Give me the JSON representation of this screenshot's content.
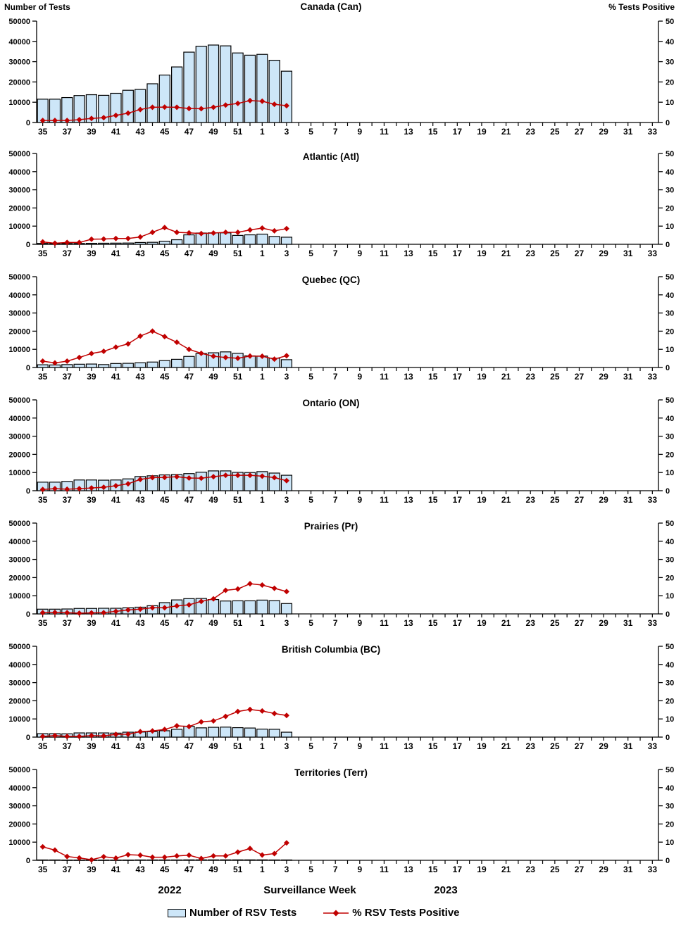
{
  "header": {
    "left_axis_label": "Number of Tests",
    "right_axis_label": "% Tests Positive"
  },
  "footer": {
    "year_left": "2022",
    "axis_title": "Surveillance Week",
    "year_right": "2023"
  },
  "legend": {
    "bar_label": "Number of RSV Tests",
    "line_label": "% RSV Tests Positive"
  },
  "colors": {
    "bar_fill": "#CDE6F8",
    "bar_stroke": "#000000",
    "line": "#C00000",
    "axis": "#000000"
  },
  "chart_data": {
    "type": "bar+line multi-panel",
    "x_axis_note": "Surveillance weeks 35-52 of 2022 followed by weeks 1-33 of 2023; bars and % positive line plotted through week 3 of 2023",
    "x_weeks": [
      35,
      36,
      37,
      38,
      39,
      40,
      41,
      42,
      43,
      44,
      45,
      46,
      47,
      48,
      49,
      50,
      51,
      52,
      1,
      2,
      3,
      4,
      5,
      6,
      7,
      8,
      9,
      10,
      11,
      12,
      13,
      14,
      15,
      16,
      17,
      18,
      19,
      20,
      21,
      22,
      23,
      24,
      25,
      26,
      27,
      28,
      29,
      30,
      31,
      32,
      33
    ],
    "x_labeled_weeks": [
      35,
      37,
      39,
      41,
      43,
      45,
      47,
      49,
      51,
      1,
      3,
      5,
      7,
      9,
      11,
      13,
      15,
      17,
      19,
      21,
      23,
      25,
      27,
      29,
      31,
      33
    ],
    "ylim_left": [
      0,
      50000
    ],
    "ylim_right": [
      0,
      50
    ],
    "y_left_ticks": [
      0,
      10000,
      20000,
      30000,
      40000,
      50000
    ],
    "y_right_ticks": [
      0,
      10,
      20,
      30,
      40,
      50
    ],
    "series_names": [
      "Number of RSV Tests",
      "% RSV Tests Positive"
    ],
    "panels": [
      {
        "title": "Canada (Can)",
        "tests": [
          11500,
          11500,
          12300,
          13300,
          13700,
          13400,
          14400,
          15900,
          16300,
          19100,
          23400,
          27400,
          34700,
          37600,
          38200,
          37800,
          34300,
          33200,
          33600,
          30700,
          25300
        ],
        "pct_positive": [
          1.0,
          1.0,
          1.0,
          1.4,
          2.0,
          2.4,
          3.5,
          4.6,
          6.4,
          7.5,
          7.6,
          7.5,
          6.9,
          6.8,
          7.5,
          8.6,
          9.4,
          10.8,
          10.5,
          9.0,
          8.3
        ]
      },
      {
        "title": "Atlantic (Atl)",
        "tests": [
          500,
          450,
          450,
          450,
          550,
          600,
          650,
          700,
          1000,
          1100,
          1700,
          2500,
          5200,
          6200,
          6300,
          6300,
          4900,
          5200,
          5600,
          4300,
          3900
        ],
        "pct_positive": [
          1.3,
          0.6,
          1.0,
          1.0,
          2.8,
          2.9,
          3.2,
          3.2,
          4.0,
          6.6,
          9.2,
          6.6,
          6.3,
          5.9,
          6.2,
          6.6,
          6.6,
          7.9,
          8.9,
          7.4,
          8.6
        ]
      },
      {
        "title": "Quebec (QC)",
        "tests": [
          1500,
          1400,
          1600,
          1800,
          1900,
          1600,
          2200,
          2300,
          2600,
          3000,
          3800,
          4500,
          6100,
          7700,
          8100,
          8600,
          7800,
          6400,
          6300,
          5100,
          4300
        ],
        "pct_positive": [
          3.5,
          2.5,
          3.5,
          5.5,
          7.7,
          8.9,
          11.2,
          13.0,
          17.3,
          20.0,
          17.0,
          13.9,
          10.0,
          7.8,
          6.2,
          5.5,
          5.1,
          6.3,
          6.2,
          4.6,
          6.5
        ]
      },
      {
        "title": "Ontario (ON)",
        "tests": [
          4700,
          4700,
          5100,
          5900,
          5900,
          5800,
          5900,
          6500,
          7800,
          8200,
          8700,
          8900,
          9400,
          10200,
          10900,
          10900,
          10100,
          10000,
          10500,
          9700,
          8500
        ],
        "pct_positive": [
          0.7,
          1.1,
          0.8,
          1.1,
          1.5,
          1.9,
          2.7,
          3.8,
          6.2,
          7.2,
          7.3,
          7.7,
          7.0,
          6.9,
          7.7,
          8.5,
          8.5,
          8.5,
          8.0,
          7.2,
          5.5
        ]
      },
      {
        "title": "Prairies (Pr)",
        "tests": [
          2600,
          2600,
          2700,
          3000,
          3000,
          3100,
          3100,
          3400,
          3700,
          4500,
          6200,
          7700,
          8400,
          8500,
          7900,
          7100,
          7200,
          7200,
          7600,
          7300,
          5700
        ],
        "pct_positive": [
          0.7,
          0.8,
          0.7,
          0.4,
          0.6,
          0.7,
          1.4,
          2.2,
          2.6,
          3.4,
          3.4,
          4.4,
          5.0,
          6.9,
          8.3,
          13.0,
          13.7,
          16.6,
          15.9,
          14.1,
          12.3
        ]
      },
      {
        "title": "British Columbia (BC)",
        "tests": [
          1900,
          1900,
          1800,
          2300,
          2300,
          2300,
          2200,
          2700,
          2800,
          3000,
          3500,
          4300,
          6000,
          5100,
          5400,
          5500,
          5200,
          5000,
          4400,
          4300,
          2700
        ],
        "pct_positive": [
          0.4,
          0.8,
          0.4,
          0.4,
          0.8,
          0.7,
          1.5,
          1.6,
          3.0,
          3.4,
          4.2,
          6.2,
          5.8,
          8.4,
          8.9,
          11.4,
          14.1,
          15.2,
          14.4,
          13.0,
          11.9
        ]
      },
      {
        "title": "Territories (Terr)",
        "tests": [
          200,
          200,
          150,
          150,
          150,
          150,
          150,
          150,
          200,
          200,
          200,
          200,
          250,
          250,
          250,
          250,
          250,
          250,
          250,
          200,
          200
        ],
        "pct_positive": [
          7.4,
          5.6,
          2.1,
          1.3,
          0.3,
          2.0,
          1.2,
          3.1,
          2.8,
          1.7,
          1.7,
          2.4,
          2.8,
          1.0,
          2.4,
          2.4,
          4.5,
          6.5,
          2.9,
          3.7,
          9.6
        ]
      }
    ]
  }
}
